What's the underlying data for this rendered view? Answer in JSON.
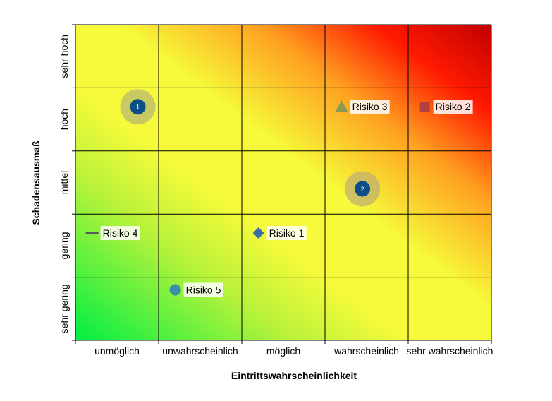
{
  "chart_data": {
    "type": "scatter",
    "title": "",
    "xlabel": "Eintrittswahrscheinlichkeit",
    "ylabel": "Schadensausmaß",
    "x_categories": [
      "unmöglich",
      "unwahrscheinlich",
      "möglich",
      "wahrscheinlich",
      "sehr wahrscheinlich"
    ],
    "y_categories": [
      "sehr gering",
      "gering",
      "mittel",
      "hoch",
      "sehr hoch"
    ],
    "xlim": [
      0,
      5
    ],
    "ylim": [
      0,
      5
    ],
    "background": "heat gradient green (bottom-left) to yellow to red (top-right)",
    "gradient_colors": {
      "green": "#00ee44",
      "yellow": "#f6fa3a",
      "orange": "#ffa020",
      "red": "#ff0000",
      "dark_red": "#c00000"
    },
    "grid": true,
    "series": [
      {
        "name": "Risiko 1",
        "marker": "diamond",
        "color": "#3a6ea5",
        "x": 2.2,
        "y": 1.7
      },
      {
        "name": "Risiko 2",
        "marker": "square",
        "color": "#b04040",
        "x": 4.2,
        "y": 3.7
      },
      {
        "name": "Risiko 3",
        "marker": "triangle",
        "color": "#8a9a50",
        "x": 3.2,
        "y": 3.7
      },
      {
        "name": "Risiko 4",
        "marker": "dash",
        "color": "#555a66",
        "x": 0.2,
        "y": 1.7
      },
      {
        "name": "Risiko 5",
        "marker": "circle",
        "color": "#3a8ea8",
        "x": 1.2,
        "y": 0.8
      }
    ],
    "badges": [
      {
        "label": "1",
        "x": 0.75,
        "y": 3.7,
        "color": "#0b4f86",
        "halo": "#b8b870"
      },
      {
        "label": "2",
        "x": 3.45,
        "y": 2.4,
        "color": "#0b4f86",
        "halo": "#c0b070"
      }
    ]
  }
}
